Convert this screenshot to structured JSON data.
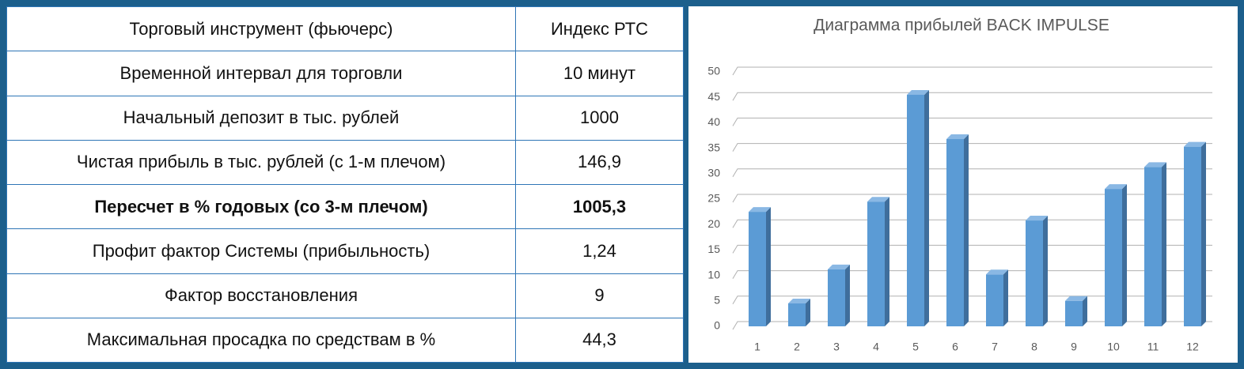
{
  "table": {
    "rows": [
      [
        "Торговый инструмент (фьючерс)",
        "Индекс РТС"
      ],
      [
        "Временной интервал для торговли",
        "10 минут"
      ],
      [
        "Начальный депозит в тыс. рублей",
        "1000"
      ],
      [
        "Чистая прибыль в тыс. рублей (с 1-м плечом)",
        "146,9"
      ],
      [
        "Пересчет в % годовых (со 3-м плечом)",
        "1005,3"
      ],
      [
        "Профит фактор Системы (прибыльность)",
        "1,24"
      ],
      [
        "Фактор восстановления",
        "9"
      ],
      [
        "Максимальная просадка по средствам в %",
        "44,3"
      ]
    ]
  },
  "chart_data": {
    "type": "bar",
    "title": "Диаграмма прибылей BACK IMPULSE",
    "categories": [
      "1",
      "2",
      "3",
      "4",
      "5",
      "6",
      "7",
      "8",
      "9",
      "10",
      "11",
      "12"
    ],
    "values": [
      22.5,
      4.5,
      11.2,
      24.5,
      45.5,
      36.8,
      10.2,
      20.8,
      5,
      27,
      31.3,
      35.3
    ],
    "color": "#5b9bd5",
    "ylim": [
      0,
      50
    ],
    "yticks": [
      0,
      5,
      10,
      15,
      20,
      25,
      30,
      35,
      40,
      45,
      50
    ],
    "grid": true
  }
}
